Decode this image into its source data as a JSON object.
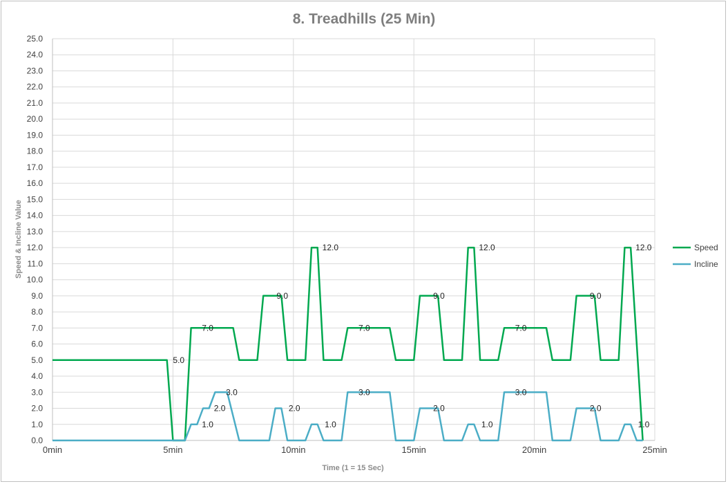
{
  "chart_data": {
    "type": "line",
    "title": "8. Treadhills (25 Min)",
    "xlabel": "Time  (1 = 15 Sec)",
    "ylabel": "Speed  &  Incline Value",
    "xlim": [
      0,
      25
    ],
    "ylim": [
      0,
      25
    ],
    "x_ticks": [
      {
        "value": 0,
        "label": "0min"
      },
      {
        "value": 5,
        "label": "5min"
      },
      {
        "value": 10,
        "label": "10min"
      },
      {
        "value": 15,
        "label": "15min"
      },
      {
        "value": 20,
        "label": "20min"
      },
      {
        "value": 25,
        "label": "25min"
      }
    ],
    "y_ticks": [
      "0.0",
      "1.0",
      "2.0",
      "3.0",
      "4.0",
      "5.0",
      "6.0",
      "7.0",
      "8.0",
      "9.0",
      "10.0",
      "11.0",
      "12.0",
      "13.0",
      "14.0",
      "15.0",
      "16.0",
      "17.0",
      "18.0",
      "19.0",
      "20.0",
      "21.0",
      "22.0",
      "23.0",
      "24.0",
      "25.0"
    ],
    "grid": true,
    "legend_position": "right",
    "series": [
      {
        "name": "Speed",
        "color": "#00a84f",
        "points": [
          [
            0,
            5
          ],
          [
            4.75,
            5
          ],
          [
            5,
            0
          ],
          [
            5.5,
            0
          ],
          [
            5.75,
            7
          ],
          [
            7.5,
            7
          ],
          [
            7.75,
            5
          ],
          [
            8.5,
            5
          ],
          [
            8.75,
            9
          ],
          [
            9.5,
            9
          ],
          [
            9.75,
            5
          ],
          [
            10.5,
            5
          ],
          [
            10.75,
            12
          ],
          [
            11,
            12
          ],
          [
            11.25,
            5
          ],
          [
            12,
            5
          ],
          [
            12.25,
            7
          ],
          [
            14,
            7
          ],
          [
            14.25,
            5
          ],
          [
            15,
            5
          ],
          [
            15.25,
            9
          ],
          [
            16,
            9
          ],
          [
            16.25,
            5
          ],
          [
            17,
            5
          ],
          [
            17.25,
            12
          ],
          [
            17.5,
            12
          ],
          [
            17.75,
            5
          ],
          [
            18.5,
            5
          ],
          [
            18.75,
            7
          ],
          [
            20.5,
            7
          ],
          [
            20.75,
            5
          ],
          [
            21.5,
            5
          ],
          [
            21.75,
            9
          ],
          [
            22.5,
            9
          ],
          [
            22.75,
            5
          ],
          [
            23.5,
            5
          ],
          [
            23.75,
            12
          ],
          [
            24,
            12
          ],
          [
            24.5,
            0
          ]
        ]
      },
      {
        "name": "Incline",
        "color": "#4badc6",
        "points": [
          [
            0,
            0
          ],
          [
            5.5,
            0
          ],
          [
            5.75,
            1
          ],
          [
            6,
            1
          ],
          [
            6.25,
            2
          ],
          [
            6.5,
            2
          ],
          [
            6.75,
            3
          ],
          [
            7,
            3
          ],
          [
            7.25,
            3
          ],
          [
            7.75,
            0
          ],
          [
            9,
            0
          ],
          [
            9.25,
            2
          ],
          [
            9.5,
            2
          ],
          [
            9.75,
            0
          ],
          [
            10.5,
            0
          ],
          [
            10.75,
            1
          ],
          [
            11,
            1
          ],
          [
            11.25,
            0
          ],
          [
            12,
            0
          ],
          [
            12.25,
            3
          ],
          [
            14,
            3
          ],
          [
            14.25,
            0
          ],
          [
            15,
            0
          ],
          [
            15.25,
            2
          ],
          [
            16,
            2
          ],
          [
            16.25,
            0
          ],
          [
            17,
            0
          ],
          [
            17.25,
            1
          ],
          [
            17.5,
            1
          ],
          [
            17.75,
            0
          ],
          [
            18.5,
            0
          ],
          [
            18.75,
            3
          ],
          [
            20.5,
            3
          ],
          [
            20.75,
            0
          ],
          [
            21.5,
            0
          ],
          [
            21.75,
            2
          ],
          [
            22.5,
            2
          ],
          [
            22.75,
            0
          ],
          [
            23.5,
            0
          ],
          [
            23.75,
            1
          ],
          [
            24,
            1
          ],
          [
            24.25,
            0
          ],
          [
            24.5,
            0
          ]
        ]
      }
    ],
    "annotations": [
      {
        "text": "5.0",
        "x": 5.0,
        "y": 5.0
      },
      {
        "text": "7.0",
        "x": 6.2,
        "y": 7.0
      },
      {
        "text": "9.0",
        "x": 9.3,
        "y": 9.0
      },
      {
        "text": "12.0",
        "x": 11.2,
        "y": 12.0
      },
      {
        "text": "7.0",
        "x": 12.7,
        "y": 7.0
      },
      {
        "text": "9.0",
        "x": 15.8,
        "y": 9.0
      },
      {
        "text": "12.0",
        "x": 17.7,
        "y": 12.0
      },
      {
        "text": "7.0",
        "x": 19.2,
        "y": 7.0
      },
      {
        "text": "9.0",
        "x": 22.3,
        "y": 9.0
      },
      {
        "text": "12.0",
        "x": 24.2,
        "y": 12.0
      },
      {
        "text": "1.0",
        "x": 6.2,
        "y": 1.0
      },
      {
        "text": "2.0",
        "x": 6.7,
        "y": 2.0
      },
      {
        "text": "3.0",
        "x": 7.2,
        "y": 3.0
      },
      {
        "text": "2.0",
        "x": 9.8,
        "y": 2.0
      },
      {
        "text": "1.0",
        "x": 11.3,
        "y": 1.0
      },
      {
        "text": "3.0",
        "x": 12.7,
        "y": 3.0
      },
      {
        "text": "2.0",
        "x": 15.8,
        "y": 2.0
      },
      {
        "text": "1.0",
        "x": 17.8,
        "y": 1.0
      },
      {
        "text": "3.0",
        "x": 19.2,
        "y": 3.0
      },
      {
        "text": "2.0",
        "x": 22.3,
        "y": 2.0
      },
      {
        "text": "1.0",
        "x": 24.3,
        "y": 1.0
      }
    ]
  }
}
